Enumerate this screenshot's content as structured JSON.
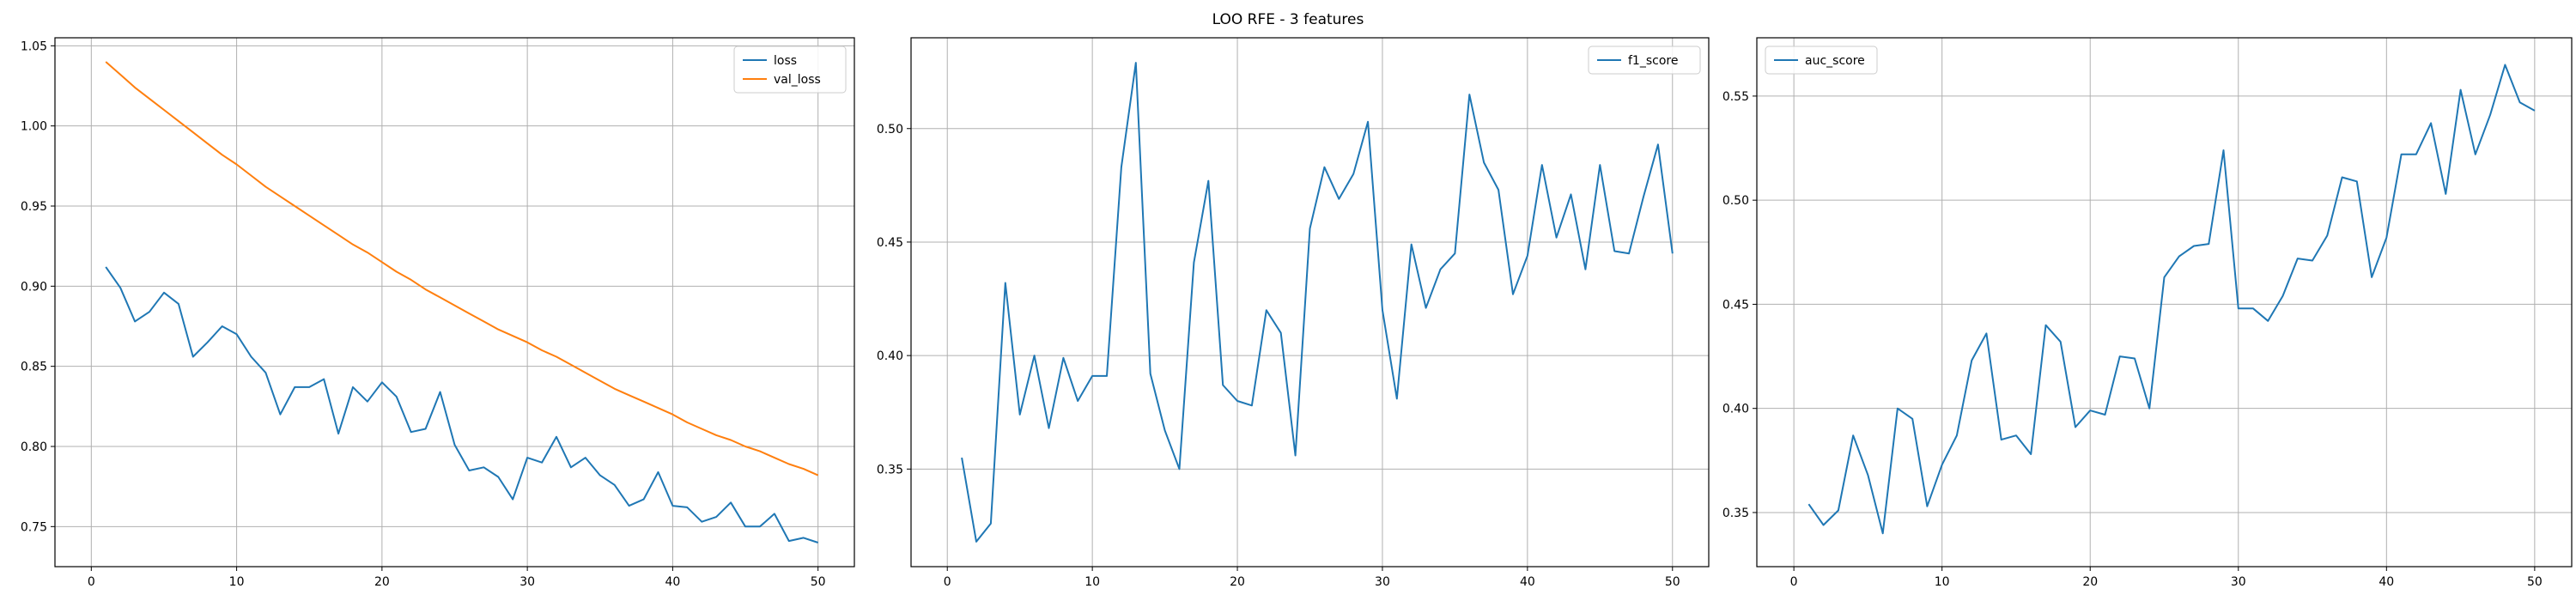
{
  "figure": {
    "title": "LOO RFE - 3 features"
  },
  "chart_data": [
    {
      "type": "line",
      "title": "",
      "xlabel": "",
      "ylabel": "",
      "xlim": [
        -2.5,
        52.5
      ],
      "ylim": [
        0.725,
        1.055
      ],
      "xticks": [
        0,
        10,
        20,
        30,
        40,
        50
      ],
      "yticks": [
        0.75,
        0.8,
        0.85,
        0.9,
        0.95,
        1.0,
        1.05
      ],
      "ytick_labels": [
        "0.75",
        "0.80",
        "0.85",
        "0.90",
        "0.95",
        "1.00",
        "1.05"
      ],
      "grid": true,
      "legend_position": "top-right",
      "x": [
        1,
        2,
        3,
        4,
        5,
        6,
        7,
        8,
        9,
        10,
        11,
        12,
        13,
        14,
        15,
        16,
        17,
        18,
        19,
        20,
        21,
        22,
        23,
        24,
        25,
        26,
        27,
        28,
        29,
        30,
        31,
        32,
        33,
        34,
        35,
        36,
        37,
        38,
        39,
        40,
        41,
        42,
        43,
        44,
        45,
        46,
        47,
        48,
        49,
        50
      ],
      "series": [
        {
          "name": "loss",
          "color": "#1f77b4",
          "values": [
            0.912,
            0.899,
            0.878,
            0.884,
            0.896,
            0.889,
            0.856,
            0.865,
            0.875,
            0.87,
            0.856,
            0.846,
            0.82,
            0.837,
            0.837,
            0.842,
            0.808,
            0.837,
            0.828,
            0.84,
            0.831,
            0.809,
            0.811,
            0.834,
            0.801,
            0.785,
            0.787,
            0.781,
            0.767,
            0.793,
            0.79,
            0.806,
            0.787,
            0.793,
            0.782,
            0.776,
            0.763,
            0.767,
            0.784,
            0.763,
            0.762,
            0.753,
            0.756,
            0.765,
            0.75,
            0.75,
            0.758,
            0.741,
            0.743,
            0.74
          ]
        },
        {
          "name": "val_loss",
          "color": "#ff7f0e",
          "values": [
            1.04,
            1.032,
            1.024,
            1.017,
            1.01,
            1.003,
            0.996,
            0.989,
            0.982,
            0.976,
            0.969,
            0.962,
            0.956,
            0.95,
            0.944,
            0.938,
            0.932,
            0.926,
            0.921,
            0.915,
            0.909,
            0.904,
            0.898,
            0.893,
            0.888,
            0.883,
            0.878,
            0.873,
            0.869,
            0.865,
            0.86,
            0.856,
            0.851,
            0.846,
            0.841,
            0.836,
            0.832,
            0.828,
            0.824,
            0.82,
            0.815,
            0.811,
            0.807,
            0.804,
            0.8,
            0.797,
            0.793,
            0.789,
            0.786,
            0.782
          ]
        }
      ]
    },
    {
      "type": "line",
      "title": "",
      "xlabel": "",
      "ylabel": "",
      "xlim": [
        -2.5,
        52.5
      ],
      "ylim": [
        0.307,
        0.54
      ],
      "xticks": [
        0,
        10,
        20,
        30,
        40,
        50
      ],
      "yticks": [
        0.35,
        0.4,
        0.45,
        0.5
      ],
      "ytick_labels": [
        "0.35",
        "0.40",
        "0.45",
        "0.50"
      ],
      "grid": true,
      "legend_position": "top-right",
      "x": [
        1,
        2,
        3,
        4,
        5,
        6,
        7,
        8,
        9,
        10,
        11,
        12,
        13,
        14,
        15,
        16,
        17,
        18,
        19,
        20,
        21,
        22,
        23,
        24,
        25,
        26,
        27,
        28,
        29,
        30,
        31,
        32,
        33,
        34,
        35,
        36,
        37,
        38,
        39,
        40,
        41,
        42,
        43,
        44,
        45,
        46,
        47,
        48,
        49,
        50
      ],
      "series": [
        {
          "name": "f1_score",
          "color": "#1f77b4",
          "values": [
            0.355,
            0.318,
            0.326,
            0.432,
            0.374,
            0.4,
            0.368,
            0.399,
            0.38,
            0.391,
            0.391,
            0.483,
            0.529,
            0.392,
            0.367,
            0.35,
            0.441,
            0.477,
            0.387,
            0.38,
            0.378,
            0.42,
            0.41,
            0.356,
            0.456,
            0.483,
            0.469,
            0.48,
            0.503,
            0.42,
            0.381,
            0.449,
            0.421,
            0.438,
            0.445,
            0.515,
            0.485,
            0.473,
            0.427,
            0.444,
            0.484,
            0.452,
            0.471,
            0.438,
            0.484,
            0.446,
            0.445,
            0.47,
            0.493,
            0.445
          ]
        }
      ]
    },
    {
      "type": "line",
      "title": "",
      "xlabel": "",
      "ylabel": "",
      "xlim": [
        -2.5,
        52.5
      ],
      "ylim": [
        0.324,
        0.578
      ],
      "xticks": [
        0,
        10,
        20,
        30,
        40,
        50
      ],
      "yticks": [
        0.35,
        0.4,
        0.45,
        0.5,
        0.55
      ],
      "ytick_labels": [
        "0.35",
        "0.40",
        "0.45",
        "0.50",
        "0.55"
      ],
      "grid": true,
      "legend_position": "top-left",
      "x": [
        1,
        2,
        3,
        4,
        5,
        6,
        7,
        8,
        9,
        10,
        11,
        12,
        13,
        14,
        15,
        16,
        17,
        18,
        19,
        20,
        21,
        22,
        23,
        24,
        25,
        26,
        27,
        28,
        29,
        30,
        31,
        32,
        33,
        34,
        35,
        36,
        37,
        38,
        39,
        40,
        41,
        42,
        43,
        44,
        45,
        46,
        47,
        48,
        49,
        50
      ],
      "series": [
        {
          "name": "auc_score",
          "color": "#1f77b4",
          "values": [
            0.354,
            0.344,
            0.351,
            0.387,
            0.368,
            0.34,
            0.4,
            0.395,
            0.353,
            0.373,
            0.387,
            0.423,
            0.436,
            0.385,
            0.387,
            0.378,
            0.44,
            0.432,
            0.391,
            0.399,
            0.397,
            0.425,
            0.424,
            0.4,
            0.463,
            0.473,
            0.478,
            0.479,
            0.524,
            0.448,
            0.448,
            0.442,
            0.454,
            0.472,
            0.471,
            0.483,
            0.511,
            0.509,
            0.463,
            0.482,
            0.522,
            0.522,
            0.537,
            0.503,
            0.553,
            0.522,
            0.541,
            0.565,
            0.547,
            0.543
          ]
        }
      ]
    }
  ]
}
